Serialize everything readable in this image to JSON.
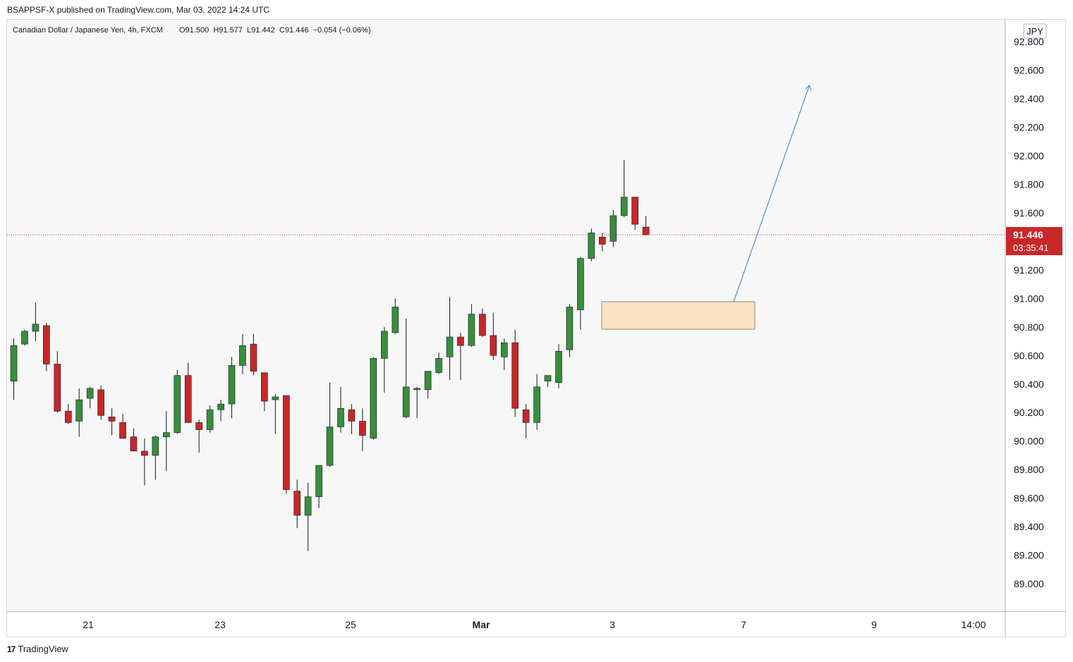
{
  "publish_line": "BSAPPSF-X published on TradingView.com, Mar 03, 2022 14:24 UTC",
  "brand": {
    "logo_text": "17",
    "name": "TradingView"
  },
  "chart_data": {
    "type": "candlestick",
    "title": "Canadian Dollar / Japanese Yen, 4h, FXCM",
    "ohlc_label": "O91.500  H91.577  L91.442  C91.446  −0.054 (−0.06%)",
    "currency": "JPY",
    "last_price": "91.446",
    "countdown": "03:35:41",
    "y_ticks": [
      "92.800",
      "92.600",
      "92.400",
      "92.200",
      "92.000",
      "91.800",
      "91.600",
      "91.200",
      "91.000",
      "90.800",
      "90.600",
      "90.400",
      "90.200",
      "90.000",
      "89.800",
      "89.600",
      "89.400",
      "89.200",
      "89.000"
    ],
    "y_range": [
      88.8,
      92.88
    ],
    "x_ticks": [
      "21",
      "23",
      "25",
      "Mar",
      "3",
      "7",
      "9",
      "14:00"
    ],
    "colors": {
      "up": "#388e3c",
      "down": "#c62828",
      "price_line": "#d32f2f",
      "arrow": "#4a90d9",
      "zone": "#fde3c5",
      "zone_border": "#7a6e62"
    },
    "candles": [
      {
        "o": 90.42,
        "h": 90.72,
        "l": 90.29,
        "c": 90.67
      },
      {
        "o": 90.68,
        "h": 90.78,
        "l": 90.67,
        "c": 90.77
      },
      {
        "o": 90.77,
        "h": 90.97,
        "l": 90.7,
        "c": 90.82
      },
      {
        "o": 90.81,
        "h": 90.83,
        "l": 90.49,
        "c": 90.54
      },
      {
        "o": 90.54,
        "h": 90.63,
        "l": 90.2,
        "c": 90.21
      },
      {
        "o": 90.21,
        "h": 90.26,
        "l": 90.12,
        "c": 90.13
      },
      {
        "o": 90.14,
        "h": 90.37,
        "l": 90.03,
        "c": 90.29
      },
      {
        "o": 90.3,
        "h": 90.38,
        "l": 90.23,
        "c": 90.37
      },
      {
        "o": 90.36,
        "h": 90.39,
        "l": 90.15,
        "c": 90.18
      },
      {
        "o": 90.17,
        "h": 90.23,
        "l": 90.04,
        "c": 90.14
      },
      {
        "o": 90.13,
        "h": 90.19,
        "l": 90.03,
        "c": 90.02
      },
      {
        "o": 90.03,
        "h": 90.09,
        "l": 89.93,
        "c": 89.93
      },
      {
        "o": 89.93,
        "h": 90.02,
        "l": 89.69,
        "c": 89.9
      },
      {
        "o": 89.9,
        "h": 90.04,
        "l": 89.73,
        "c": 90.03
      },
      {
        "o": 90.03,
        "h": 90.21,
        "l": 89.79,
        "c": 90.06
      },
      {
        "o": 90.06,
        "h": 90.5,
        "l": 90.05,
        "c": 90.46
      },
      {
        "o": 90.46,
        "h": 90.55,
        "l": 90.13,
        "c": 90.13
      },
      {
        "o": 90.13,
        "h": 90.15,
        "l": 89.92,
        "c": 90.08
      },
      {
        "o": 90.08,
        "h": 90.25,
        "l": 90.06,
        "c": 90.22
      },
      {
        "o": 90.22,
        "h": 90.29,
        "l": 90.14,
        "c": 90.26
      },
      {
        "o": 90.26,
        "h": 90.59,
        "l": 90.16,
        "c": 90.53
      },
      {
        "o": 90.53,
        "h": 90.75,
        "l": 90.47,
        "c": 90.67
      },
      {
        "o": 90.68,
        "h": 90.75,
        "l": 90.46,
        "c": 90.49
      },
      {
        "o": 90.48,
        "h": 90.48,
        "l": 90.21,
        "c": 90.28
      },
      {
        "o": 90.29,
        "h": 90.33,
        "l": 90.05,
        "c": 90.31
      },
      {
        "o": 90.32,
        "h": 90.32,
        "l": 89.63,
        "c": 89.66
      },
      {
        "o": 89.65,
        "h": 89.73,
        "l": 89.39,
        "c": 89.48
      },
      {
        "o": 89.48,
        "h": 89.71,
        "l": 89.23,
        "c": 89.61
      },
      {
        "o": 89.61,
        "h": 89.82,
        "l": 89.53,
        "c": 89.83
      },
      {
        "o": 89.83,
        "h": 90.41,
        "l": 89.82,
        "c": 90.1
      },
      {
        "o": 90.1,
        "h": 90.38,
        "l": 90.06,
        "c": 90.23
      },
      {
        "o": 90.22,
        "h": 90.26,
        "l": 90.05,
        "c": 90.14
      },
      {
        "o": 90.14,
        "h": 90.23,
        "l": 89.93,
        "c": 90.04
      },
      {
        "o": 90.02,
        "h": 90.59,
        "l": 90.01,
        "c": 90.58
      },
      {
        "o": 90.58,
        "h": 90.8,
        "l": 90.34,
        "c": 90.77
      },
      {
        "o": 90.76,
        "h": 91.0,
        "l": 90.75,
        "c": 90.94
      },
      {
        "o": 90.17,
        "h": 90.86,
        "l": 90.16,
        "c": 90.38
      },
      {
        "o": 90.36,
        "h": 90.38,
        "l": 90.16,
        "c": 90.37
      },
      {
        "o": 90.36,
        "h": 90.49,
        "l": 90.3,
        "c": 90.49
      },
      {
        "o": 90.48,
        "h": 90.62,
        "l": 90.47,
        "c": 90.58
      },
      {
        "o": 90.59,
        "h": 91.01,
        "l": 90.43,
        "c": 90.73
      },
      {
        "o": 90.73,
        "h": 90.76,
        "l": 90.43,
        "c": 90.67
      },
      {
        "o": 90.67,
        "h": 90.96,
        "l": 90.66,
        "c": 90.89
      },
      {
        "o": 90.89,
        "h": 90.93,
        "l": 90.73,
        "c": 90.74
      },
      {
        "o": 90.74,
        "h": 90.9,
        "l": 90.57,
        "c": 90.6
      },
      {
        "o": 90.59,
        "h": 90.72,
        "l": 90.5,
        "c": 90.69
      },
      {
        "o": 90.69,
        "h": 90.78,
        "l": 90.17,
        "c": 90.23
      },
      {
        "o": 90.22,
        "h": 90.26,
        "l": 90.02,
        "c": 90.13
      },
      {
        "o": 90.13,
        "h": 90.47,
        "l": 90.08,
        "c": 90.38
      },
      {
        "o": 90.42,
        "h": 90.45,
        "l": 90.38,
        "c": 90.46
      },
      {
        "o": 90.41,
        "h": 90.68,
        "l": 90.37,
        "c": 90.63
      },
      {
        "o": 90.64,
        "h": 90.96,
        "l": 90.59,
        "c": 90.94
      },
      {
        "o": 90.92,
        "h": 91.29,
        "l": 90.78,
        "c": 91.28
      },
      {
        "o": 91.28,
        "h": 91.49,
        "l": 91.26,
        "c": 91.46
      },
      {
        "o": 91.43,
        "h": 91.46,
        "l": 91.33,
        "c": 91.38
      },
      {
        "o": 91.4,
        "h": 91.62,
        "l": 91.36,
        "c": 91.58
      },
      {
        "o": 91.58,
        "h": 91.97,
        "l": 91.57,
        "c": 91.71
      },
      {
        "o": 91.71,
        "h": 91.71,
        "l": 91.48,
        "c": 91.52
      },
      {
        "o": 91.5,
        "h": 91.577,
        "l": 91.442,
        "c": 91.446
      }
    ]
  }
}
